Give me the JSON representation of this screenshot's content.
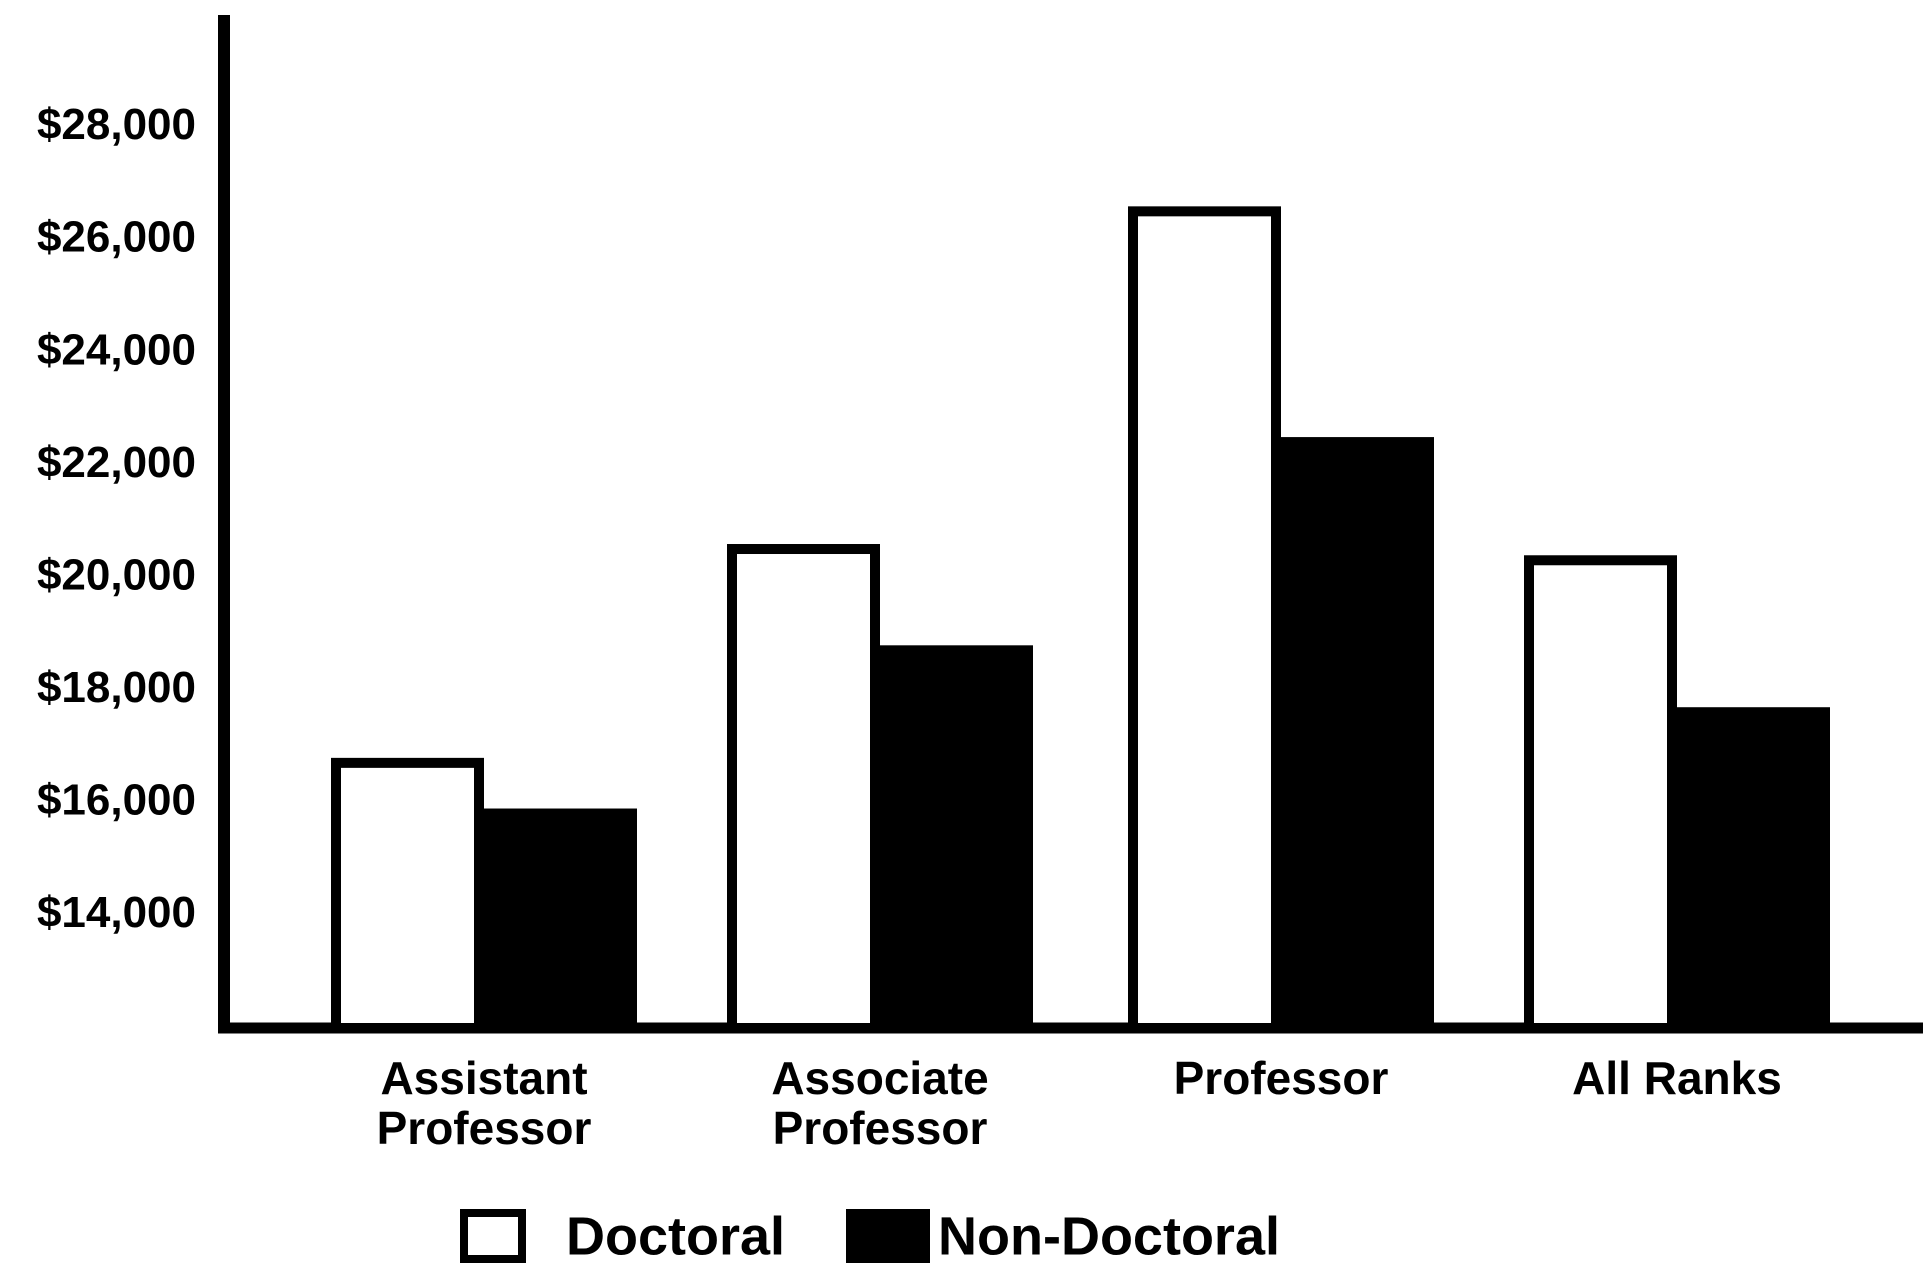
{
  "chart_data": {
    "type": "bar",
    "categories": [
      "Assistant Professor",
      "Associate Professor",
      "Professor",
      "All Ranks"
    ],
    "series": [
      {
        "name": "Doctoral",
        "color": "#ffffff",
        "values": [
          16800,
          20600,
          26600,
          20400
        ]
      },
      {
        "name": "Non-Doctoral",
        "color": "#000000",
        "values": [
          15900,
          18800,
          22500,
          17700
        ]
      }
    ],
    "ylim": [
      12000,
      30000
    ],
    "yticks": [
      {
        "value": 14000,
        "label": "$14,000"
      },
      {
        "value": 16000,
        "label": "$16,000"
      },
      {
        "value": 18000,
        "label": "$18,000"
      },
      {
        "value": 20000,
        "label": "$20,000"
      },
      {
        "value": 22000,
        "label": "$22,000"
      },
      {
        "value": 24000,
        "label": "$24,000"
      },
      {
        "value": 26000,
        "label": "$26,000"
      },
      {
        "value": 28000,
        "label": "$28,000"
      }
    ],
    "grid": false,
    "legend": "bottom"
  }
}
